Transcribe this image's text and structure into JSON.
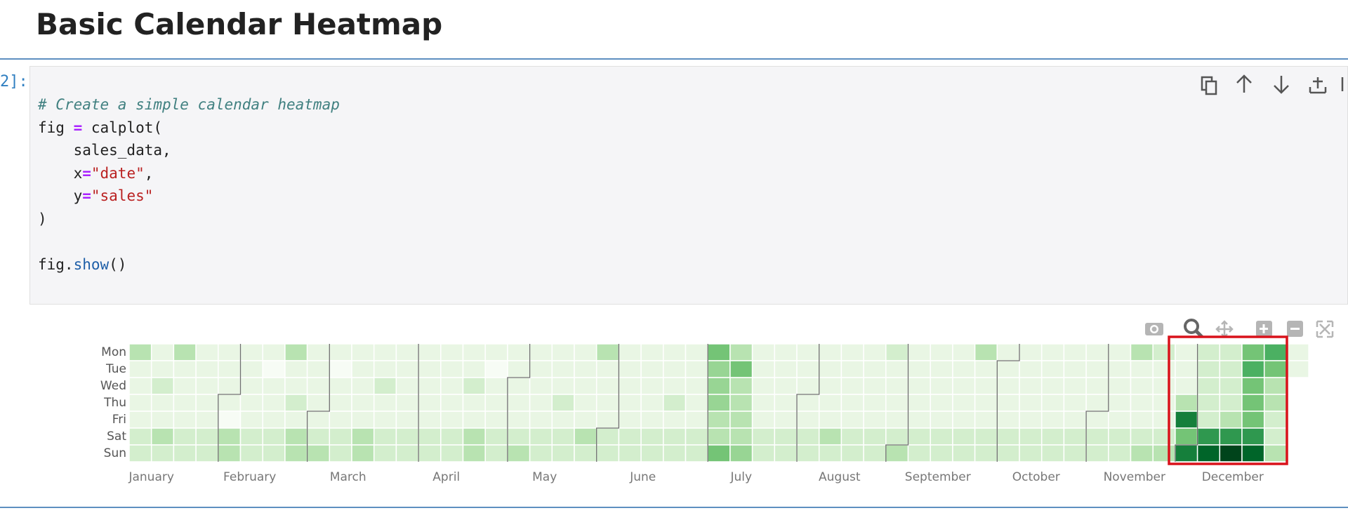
{
  "header": {
    "title": "Basic Calendar Heatmap"
  },
  "cell": {
    "prompt": "2]:",
    "lines": [
      [
        {
          "text": "# Create a simple calendar heatmap",
          "style": "comment"
        }
      ],
      [
        {
          "text": "fig "
        },
        {
          "text": "=",
          "style": "op"
        },
        {
          "text": " calplot("
        }
      ],
      [
        {
          "text": "    sales_data,"
        }
      ],
      [
        {
          "text": "    x"
        },
        {
          "text": "=",
          "style": "op"
        },
        {
          "text": "\"date\"",
          "style": "string"
        },
        {
          "text": ","
        }
      ],
      [
        {
          "text": "    y"
        },
        {
          "text": "=",
          "style": "op"
        },
        {
          "text": "\"sales\"",
          "style": "string"
        }
      ],
      [
        {
          "text": ")"
        }
      ],
      [
        {
          "text": "fig."
        },
        {
          "text": "show",
          "style": "call"
        },
        {
          "text": "()"
        }
      ]
    ]
  },
  "chart_data": {
    "type": "heatmap",
    "days": [
      "Mon",
      "Tue",
      "Wed",
      "Thu",
      "Fri",
      "Sat",
      "Sun"
    ],
    "months": [
      "January",
      "February",
      "March",
      "April",
      "May",
      "June",
      "July",
      "August",
      "September",
      "October",
      "November",
      "December"
    ],
    "zlim": [
      0,
      10
    ],
    "colorscale": [
      "#f7fcf5",
      "#e5f5e0",
      "#c7e9c0",
      "#a1d99b",
      "#74c476",
      "#41ab5d",
      "#238b45",
      "#006d2c",
      "#00441b"
    ],
    "highlight_color": "#d9121b",
    "weeks": [
      [
        3,
        1,
        1,
        1,
        1,
        2,
        2
      ],
      [
        1,
        1,
        2,
        1,
        1,
        3,
        2
      ],
      [
        3,
        1,
        1,
        1,
        1,
        2,
        2
      ],
      [
        1,
        1,
        1,
        1,
        1,
        2,
        2
      ],
      [
        1,
        1,
        1,
        1,
        0,
        3,
        3
      ],
      [
        1,
        1,
        1,
        1,
        1,
        2,
        2
      ],
      [
        1,
        0,
        1,
        1,
        1,
        2,
        2
      ],
      [
        3,
        1,
        1,
        2,
        1,
        3,
        3
      ],
      [
        1,
        1,
        1,
        1,
        1,
        2,
        3
      ],
      [
        1,
        0,
        1,
        1,
        1,
        2,
        2
      ],
      [
        1,
        1,
        1,
        1,
        1,
        3,
        3
      ],
      [
        1,
        1,
        2,
        1,
        1,
        2,
        2
      ],
      [
        1,
        1,
        1,
        1,
        1,
        2,
        2
      ],
      [
        1,
        1,
        1,
        1,
        1,
        2,
        2
      ],
      [
        1,
        1,
        1,
        1,
        1,
        2,
        2
      ],
      [
        1,
        1,
        2,
        1,
        1,
        3,
        3
      ],
      [
        1,
        0,
        1,
        1,
        1,
        2,
        2
      ],
      [
        1,
        1,
        1,
        1,
        1,
        2,
        3
      ],
      [
        1,
        1,
        1,
        1,
        1,
        2,
        2
      ],
      [
        1,
        1,
        1,
        2,
        1,
        2,
        2
      ],
      [
        1,
        1,
        1,
        1,
        1,
        3,
        2
      ],
      [
        3,
        1,
        1,
        1,
        1,
        2,
        2
      ],
      [
        1,
        1,
        1,
        1,
        1,
        2,
        2
      ],
      [
        1,
        1,
        1,
        1,
        1,
        2,
        2
      ],
      [
        1,
        1,
        1,
        2,
        1,
        2,
        2
      ],
      [
        1,
        1,
        1,
        1,
        1,
        2,
        2
      ],
      [
        5,
        4,
        4,
        4,
        3,
        3,
        5
      ],
      [
        3,
        5,
        3,
        3,
        3,
        3,
        4
      ],
      [
        1,
        1,
        1,
        1,
        1,
        2,
        2
      ],
      [
        1,
        1,
        1,
        1,
        1,
        2,
        2
      ],
      [
        1,
        1,
        1,
        1,
        1,
        2,
        2
      ],
      [
        1,
        1,
        1,
        1,
        1,
        3,
        2
      ],
      [
        1,
        1,
        1,
        1,
        1,
        2,
        2
      ],
      [
        1,
        1,
        1,
        1,
        1,
        2,
        2
      ],
      [
        2,
        1,
        1,
        1,
        1,
        2,
        3
      ],
      [
        1,
        1,
        1,
        1,
        1,
        2,
        2
      ],
      [
        1,
        1,
        1,
        1,
        1,
        2,
        2
      ],
      [
        1,
        1,
        1,
        1,
        1,
        2,
        2
      ],
      [
        3,
        1,
        1,
        1,
        1,
        2,
        2
      ],
      [
        1,
        1,
        1,
        1,
        1,
        2,
        2
      ],
      [
        1,
        1,
        1,
        1,
        1,
        2,
        2
      ],
      [
        1,
        1,
        1,
        1,
        1,
        2,
        2
      ],
      [
        1,
        1,
        1,
        1,
        1,
        2,
        2
      ],
      [
        1,
        1,
        1,
        1,
        1,
        2,
        2
      ],
      [
        1,
        1,
        1,
        1,
        1,
        2,
        2
      ],
      [
        3,
        1,
        1,
        1,
        1,
        2,
        3
      ],
      [
        2,
        1,
        1,
        1,
        1,
        2,
        3
      ],
      [
        1,
        1,
        1,
        3,
        8,
        5,
        8
      ],
      [
        2,
        2,
        2,
        2,
        2,
        7,
        9
      ],
      [
        2,
        2,
        2,
        2,
        3,
        7,
        10
      ],
      [
        5,
        6,
        5,
        5,
        5,
        7,
        9
      ],
      [
        6,
        5,
        3,
        3,
        2,
        2,
        3
      ],
      [
        1,
        1
      ]
    ]
  }
}
